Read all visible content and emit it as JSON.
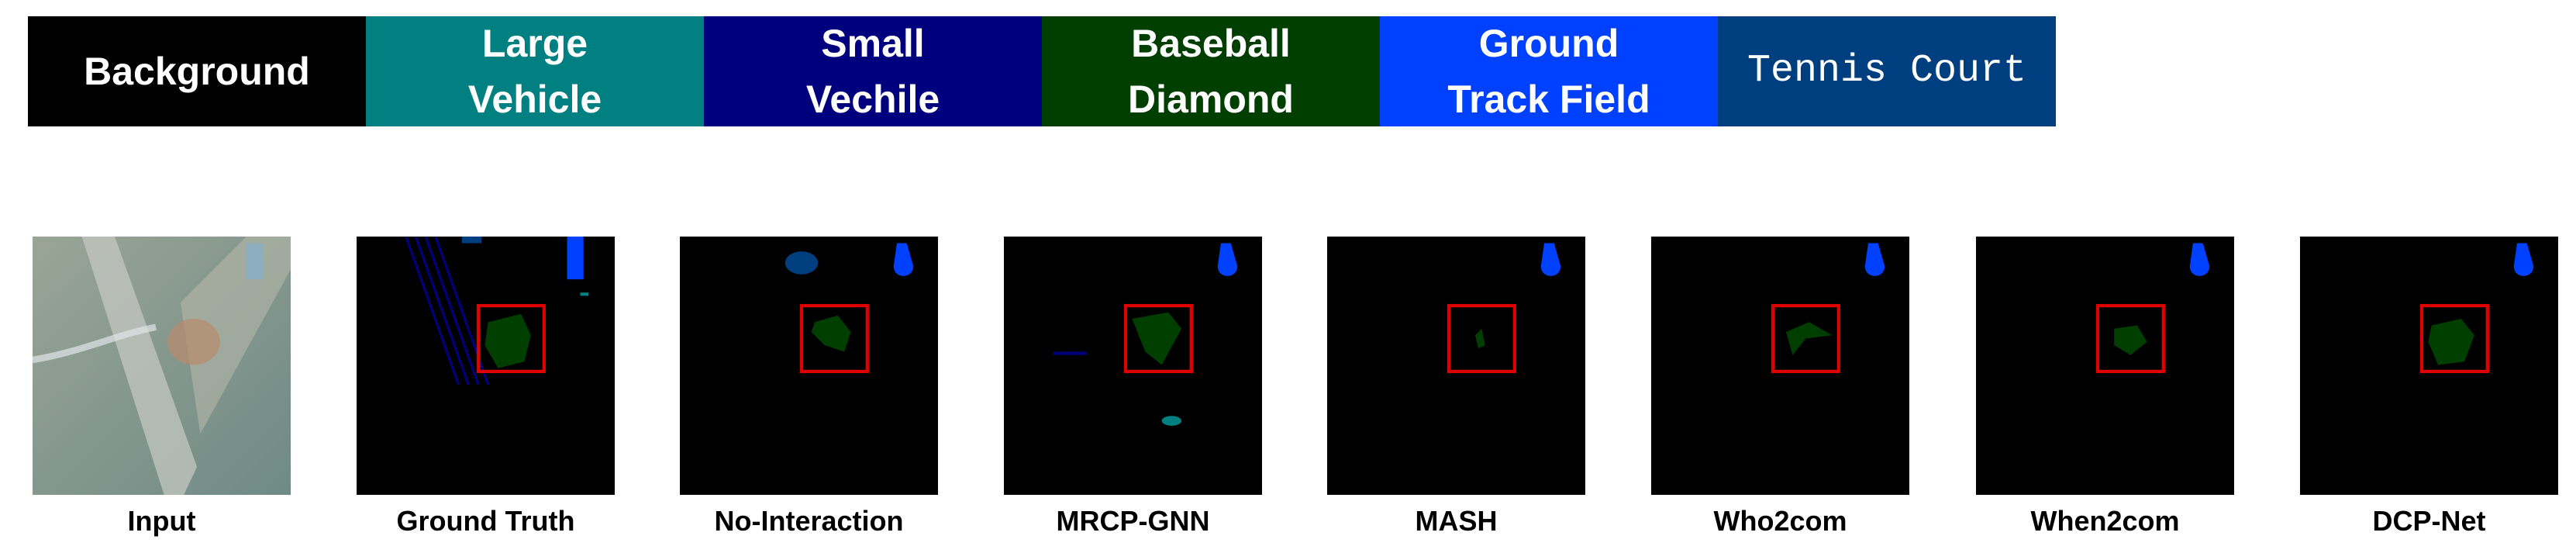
{
  "legend": [
    {
      "label": "Background",
      "color": "#000000"
    },
    {
      "label": "Large Vehicle",
      "color": "#008080"
    },
    {
      "label": "Small Vechile",
      "color": "#00007f"
    },
    {
      "label": "Baseball Diamond",
      "color": "#003f00"
    },
    {
      "label": "Ground Track Field",
      "color": "#0040ff"
    },
    {
      "label": "Tennis Court",
      "color": "#003f7f"
    }
  ],
  "panels": [
    "Input",
    "Ground Truth",
    "No-Interaction",
    "MRCP-GNN",
    "MASH",
    "Who2com",
    "When2com",
    "DCP-Net"
  ]
}
